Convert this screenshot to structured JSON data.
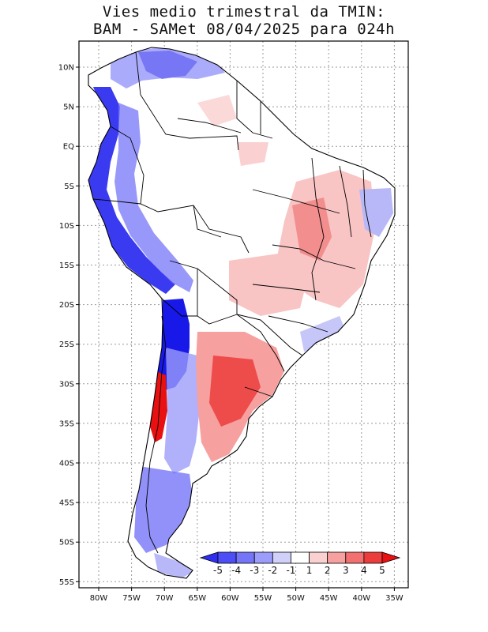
{
  "title": {
    "line1": "Vies medio trimestral da TMIN:",
    "line2": "BAM - SAMet 08/04/2025  para 024h"
  },
  "axes": {
    "lat_labels": [
      "10N",
      "5N",
      "EQ",
      "5S",
      "10S",
      "15S",
      "20S",
      "25S",
      "30S",
      "35S",
      "40S",
      "45S",
      "50S",
      "55S"
    ],
    "lon_labels": [
      "80W",
      "75W",
      "70W",
      "65W",
      "60W",
      "55W",
      "50W",
      "45W",
      "40W",
      "35W"
    ]
  },
  "colorbar": {
    "labels": [
      "-5",
      "-4",
      "-3",
      "-2",
      "-1",
      "1",
      "2",
      "3",
      "4",
      "5"
    ],
    "colors": [
      "#2f2ff0",
      "#4e4ef6",
      "#7575f8",
      "#9c9cfa",
      "#d0d0fb",
      "#ffffff",
      "#fbd0d0",
      "#f7a0a0",
      "#f27070",
      "#ec3c3c",
      "#e81010"
    ]
  },
  "map": {
    "region": "South America",
    "variable": "TMIN bias",
    "colors": {
      "strong_negative": "#1818e8",
      "moderate_negative": "#6a6af4",
      "weak_negative": "#b8b8f8",
      "weak_positive": "#f8c4c4",
      "moderate_positive": "#f28888",
      "strong_positive": "#e82020",
      "land": "#ffffff",
      "border": "#000000"
    }
  }
}
